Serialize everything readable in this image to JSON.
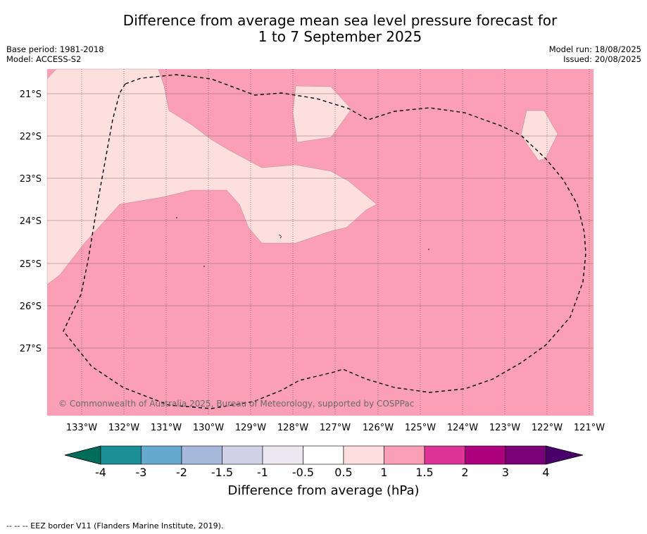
{
  "title_line1": "Difference from average mean sea level pressure forecast for",
  "title_line2": "1 to 7 September 2025",
  "base_period": "Base period: 1981-2018",
  "model": "Model: ACCESS-S2",
  "model_run": "Model run: 18/08/2025",
  "issued": "Issued: 20/08/2025",
  "copyright": "© Commonwealth of Australia 2025, Bureau of Meteorology, supported by COSPPac",
  "lat_labels": [
    "21°S",
    "22°S",
    "23°S",
    "24°S",
    "25°S",
    "26°S",
    "27°S"
  ],
  "lon_labels": [
    "133°W",
    "132°W",
    "131°W",
    "130°W",
    "129°W",
    "128°W",
    "127°W",
    "126°W",
    "125°W",
    "124°W",
    "123°W",
    "122°W",
    "121°W"
  ],
  "colorbar": {
    "ticks": [
      "-4",
      "-3",
      "-2",
      "-1.5",
      "-1",
      "-0.5",
      "0.5",
      "1",
      "1.5",
      "2",
      "3",
      "4"
    ],
    "colors": [
      "#1a8f96",
      "#66a9cf",
      "#a6b9da",
      "#d0d1e6",
      "#ece7f0",
      "#ffffff",
      "#fde0dd",
      "#fa9fb5",
      "#dd3497",
      "#ae017e",
      "#7a0177"
    ],
    "under_color": "#016c59",
    "over_color": "#49006a",
    "label": "Difference from average (hPa)"
  },
  "legend_footer": "--  --  -- EEZ border V11 (Flanders Marine Institute, 2019).",
  "map_colors": {
    "band_1_to_1_5": "#fa9fb5",
    "band_0_5_to_1": "#fde0dd"
  }
}
